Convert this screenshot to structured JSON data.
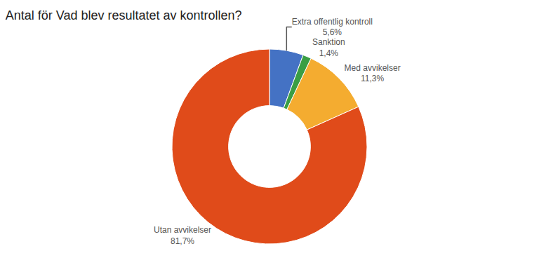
{
  "chart_data": {
    "type": "donut",
    "title": "Antal för Vad blev resultatet av kontrollen?",
    "categories": [
      "Extra offentlig kontroll",
      "Sanktion",
      "Med avvikelser",
      "Utan avvikelser"
    ],
    "values": [
      5.6,
      1.4,
      11.3,
      81.7
    ],
    "value_labels": [
      "5,6%",
      "1,4%",
      "11,3%",
      "81,7%"
    ],
    "colors": [
      "#4472c4",
      "#3a9e44",
      "#f4ac30",
      "#e04b1a"
    ]
  }
}
